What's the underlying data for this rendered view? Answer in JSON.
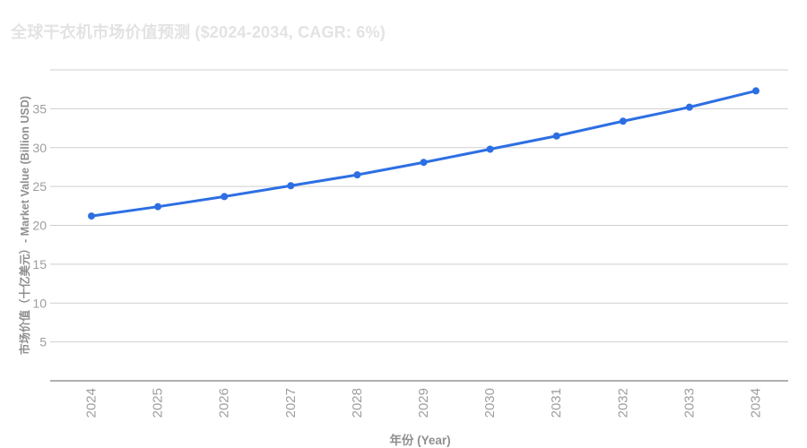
{
  "page": {
    "background": "#ffffff"
  },
  "chart_data": {
    "type": "line",
    "title": "全球干衣机市场价值预测 ($2024-2034, CAGR: 6%)",
    "xlabel": "年份 (Year)",
    "ylabel": "市场价值（十亿美元）- Market Value (Billion USD)",
    "categories": [
      "2024",
      "2025",
      "2026",
      "2027",
      "2028",
      "2029",
      "2030",
      "2031",
      "2032",
      "2033",
      "2034"
    ],
    "values": [
      21.2,
      22.4,
      23.7,
      25.1,
      26.5,
      28.1,
      29.8,
      31.5,
      33.4,
      35.2,
      37.3
    ],
    "ylim": [
      0,
      40
    ],
    "ytick_step": 5,
    "ytick_labels": [
      "5",
      "10",
      "15",
      "20",
      "25",
      "30",
      "35"
    ],
    "grid": true,
    "legend": "none",
    "marker": "circle",
    "colors": {
      "line": "#2d6fe3",
      "grid": "#cfcfcf",
      "axis": "#b0b0b0",
      "tick_label": "#9e9e9e",
      "axis_title": "#8f8f8f",
      "title": "#e3e3e3"
    }
  }
}
